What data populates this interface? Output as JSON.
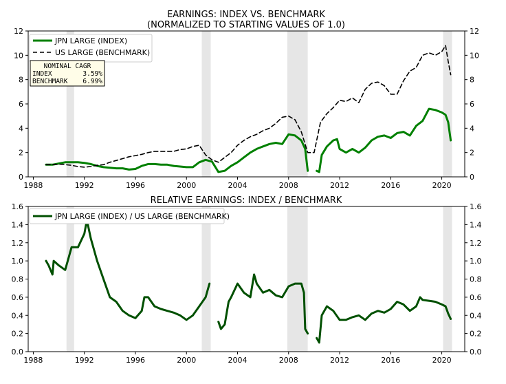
{
  "chart_data": [
    {
      "type": "line",
      "title": "EARNINGS: INDEX VS. BENCHMARK",
      "subtitle": "(NORMALIZED TO STARTING VALUES OF 1.0)",
      "xlim": [
        1987.6,
        2021.8
      ],
      "ylim": [
        0,
        12
      ],
      "xticks": [
        1988,
        1992,
        1996,
        2000,
        2004,
        2008,
        2012,
        2016,
        2020
      ],
      "yticks": [
        0,
        2,
        4,
        6,
        8,
        10,
        12
      ],
      "y_tick_decimals": 0,
      "recessions": [
        [
          1990.6,
          1991.2
        ],
        [
          2001.2,
          2001.9
        ],
        [
          2007.9,
          2009.5
        ],
        [
          2020.1,
          2020.8
        ]
      ],
      "legend": {
        "placement": "top-left"
      },
      "series": [
        {
          "name": "JPN LARGE (INDEX)",
          "color": "#008000",
          "dash": "",
          "width": 3,
          "points": [
            [
              1989.0,
              1.0
            ],
            [
              1989.5,
              1.0
            ],
            [
              1990.0,
              1.1
            ],
            [
              1990.5,
              1.2
            ],
            [
              1991.0,
              1.2
            ],
            [
              1991.5,
              1.2
            ],
            [
              1992.0,
              1.15
            ],
            [
              1992.5,
              1.05
            ],
            [
              1993.0,
              0.9
            ],
            [
              1993.5,
              0.8
            ],
            [
              1994.0,
              0.75
            ],
            [
              1994.5,
              0.7
            ],
            [
              1995.0,
              0.7
            ],
            [
              1995.5,
              0.6
            ],
            [
              1996.0,
              0.65
            ],
            [
              1996.5,
              0.9
            ],
            [
              1997.0,
              1.05
            ],
            [
              1997.5,
              1.05
            ],
            [
              1998.0,
              1.0
            ],
            [
              1998.5,
              1.0
            ],
            [
              1999.0,
              0.9
            ],
            [
              1999.5,
              0.85
            ],
            [
              2000.0,
              0.8
            ],
            [
              2000.5,
              0.8
            ],
            [
              2001.0,
              1.2
            ],
            [
              2001.5,
              1.4
            ],
            [
              2002.0,
              1.25
            ],
            [
              2002.5,
              0.4
            ],
            [
              2003.0,
              0.5
            ],
            [
              2003.5,
              0.9
            ],
            [
              2004.0,
              1.2
            ],
            [
              2004.5,
              1.6
            ],
            [
              2005.0,
              2.0
            ],
            [
              2005.5,
              2.3
            ],
            [
              2006.0,
              2.5
            ],
            [
              2006.5,
              2.7
            ],
            [
              2007.0,
              2.8
            ],
            [
              2007.5,
              2.7
            ],
            [
              2008.0,
              3.5
            ],
            [
              2008.5,
              3.4
            ],
            [
              2009.0,
              3.0
            ],
            [
              2009.3,
              2.3
            ],
            [
              2009.5,
              0.5
            ],
            null,
            [
              2010.2,
              0.5
            ],
            [
              2010.4,
              0.4
            ],
            [
              2010.6,
              1.8
            ],
            [
              2011.0,
              2.5
            ],
            [
              2011.5,
              3.0
            ],
            [
              2011.8,
              3.1
            ],
            [
              2012.0,
              2.3
            ],
            [
              2012.5,
              2.0
            ],
            [
              2013.0,
              2.3
            ],
            [
              2013.5,
              2.0
            ],
            [
              2014.0,
              2.4
            ],
            [
              2014.5,
              3.0
            ],
            [
              2015.0,
              3.3
            ],
            [
              2015.5,
              3.4
            ],
            [
              2016.0,
              3.2
            ],
            [
              2016.5,
              3.6
            ],
            [
              2017.0,
              3.7
            ],
            [
              2017.5,
              3.4
            ],
            [
              2018.0,
              4.2
            ],
            [
              2018.5,
              4.6
            ],
            [
              2019.0,
              5.6
            ],
            [
              2019.5,
              5.5
            ],
            [
              2020.0,
              5.3
            ],
            [
              2020.3,
              5.1
            ],
            [
              2020.5,
              4.5
            ],
            [
              2020.7,
              3.0
            ]
          ]
        },
        {
          "name": "US LARGE (BENCHMARK)",
          "color": "#000000",
          "dash": "6,4",
          "width": 1.6,
          "points": [
            [
              1989.0,
              1.0
            ],
            [
              1989.5,
              1.0
            ],
            [
              1990.0,
              1.05
            ],
            [
              1990.5,
              1.0
            ],
            [
              1991.0,
              0.95
            ],
            [
              1991.5,
              0.85
            ],
            [
              1992.0,
              0.8
            ],
            [
              1992.5,
              0.85
            ],
            [
              1993.0,
              0.95
            ],
            [
              1993.5,
              1.0
            ],
            [
              1994.0,
              1.2
            ],
            [
              1994.5,
              1.35
            ],
            [
              1995.0,
              1.5
            ],
            [
              1995.5,
              1.65
            ],
            [
              1996.0,
              1.75
            ],
            [
              1996.5,
              1.85
            ],
            [
              1997.0,
              2.0
            ],
            [
              1997.5,
              2.1
            ],
            [
              1998.0,
              2.1
            ],
            [
              1998.5,
              2.1
            ],
            [
              1999.0,
              2.1
            ],
            [
              1999.5,
              2.25
            ],
            [
              2000.0,
              2.3
            ],
            [
              2000.5,
              2.5
            ],
            [
              2001.0,
              2.6
            ],
            [
              2001.5,
              1.8
            ],
            [
              2002.0,
              1.4
            ],
            [
              2002.5,
              1.2
            ],
            [
              2003.0,
              1.6
            ],
            [
              2003.5,
              2.0
            ],
            [
              2004.0,
              2.6
            ],
            [
              2004.5,
              3.0
            ],
            [
              2005.0,
              3.3
            ],
            [
              2005.5,
              3.5
            ],
            [
              2006.0,
              3.8
            ],
            [
              2006.5,
              4.0
            ],
            [
              2007.0,
              4.4
            ],
            [
              2007.5,
              4.9
            ],
            [
              2008.0,
              5.0
            ],
            [
              2008.5,
              4.7
            ],
            [
              2009.0,
              3.7
            ],
            [
              2009.5,
              2.0
            ],
            [
              2010.0,
              2.0
            ],
            [
              2010.5,
              4.5
            ],
            [
              2011.0,
              5.2
            ],
            [
              2011.5,
              5.7
            ],
            [
              2012.0,
              6.3
            ],
            [
              2012.5,
              6.2
            ],
            [
              2013.0,
              6.5
            ],
            [
              2013.5,
              6.1
            ],
            [
              2014.0,
              7.2
            ],
            [
              2014.5,
              7.7
            ],
            [
              2015.0,
              7.8
            ],
            [
              2015.5,
              7.5
            ],
            [
              2016.0,
              6.8
            ],
            [
              2016.5,
              6.8
            ],
            [
              2017.0,
              7.9
            ],
            [
              2017.5,
              8.7
            ],
            [
              2018.0,
              9.0
            ],
            [
              2018.5,
              10.0
            ],
            [
              2019.0,
              10.2
            ],
            [
              2019.5,
              10.0
            ],
            [
              2020.0,
              10.3
            ],
            [
              2020.3,
              10.8
            ],
            [
              2020.5,
              9.5
            ],
            [
              2020.7,
              8.4
            ]
          ]
        }
      ],
      "cagr_box": {
        "header": "NOMINAL CAGR",
        "rows": [
          {
            "label": "INDEX",
            "value": "3.59%"
          },
          {
            "label": "BENCHMARK",
            "value": "6.99%"
          }
        ]
      }
    },
    {
      "type": "line",
      "title": "RELATIVE EARNINGS: INDEX / BENCHMARK",
      "xlim": [
        1987.6,
        2021.8
      ],
      "ylim": [
        0,
        1.6
      ],
      "xticks": [
        1988,
        1992,
        1996,
        2000,
        2004,
        2008,
        2012,
        2016,
        2020
      ],
      "yticks": [
        0.0,
        0.2,
        0.4,
        0.6,
        0.8,
        1.0,
        1.2,
        1.4,
        1.6
      ],
      "y_tick_decimals": 1,
      "recessions": [
        [
          1990.6,
          1991.2
        ],
        [
          2001.2,
          2001.9
        ],
        [
          2007.9,
          2009.5
        ],
        [
          2020.1,
          2020.8
        ]
      ],
      "legend": {
        "placement": "top-left"
      },
      "series": [
        {
          "name": "JPN LARGE (INDEX) / US LARGE (BENCHMARK)",
          "color": "#005000",
          "dash": "",
          "width": 3,
          "points": [
            [
              1989.0,
              1.0
            ],
            [
              1989.2,
              0.95
            ],
            [
              1989.5,
              0.85
            ],
            [
              1989.6,
              1.0
            ],
            [
              1990.0,
              0.95
            ],
            [
              1990.5,
              0.9
            ],
            [
              1990.8,
              1.05
            ],
            [
              1991.0,
              1.15
            ],
            [
              1991.5,
              1.15
            ],
            [
              1992.0,
              1.3
            ],
            [
              1992.2,
              1.45
            ],
            [
              1992.5,
              1.25
            ],
            [
              1993.0,
              1.0
            ],
            [
              1993.5,
              0.8
            ],
            [
              1994.0,
              0.6
            ],
            [
              1994.5,
              0.55
            ],
            [
              1995.0,
              0.45
            ],
            [
              1995.5,
              0.4
            ],
            [
              1996.0,
              0.37
            ],
            [
              1996.5,
              0.45
            ],
            [
              1996.7,
              0.6
            ],
            [
              1997.0,
              0.6
            ],
            [
              1997.5,
              0.5
            ],
            [
              1998.0,
              0.47
            ],
            [
              1998.5,
              0.45
            ],
            [
              1999.0,
              0.43
            ],
            [
              1999.5,
              0.4
            ],
            [
              2000.0,
              0.35
            ],
            [
              2000.5,
              0.4
            ],
            [
              2001.0,
              0.5
            ],
            [
              2001.5,
              0.6
            ],
            [
              2001.8,
              0.75
            ],
            null,
            [
              2002.5,
              0.33
            ],
            [
              2002.7,
              0.25
            ],
            [
              2003.0,
              0.3
            ],
            [
              2003.3,
              0.55
            ],
            [
              2003.5,
              0.6
            ],
            [
              2004.0,
              0.75
            ],
            [
              2004.5,
              0.65
            ],
            [
              2005.0,
              0.6
            ],
            [
              2005.3,
              0.85
            ],
            [
              2005.5,
              0.75
            ],
            [
              2006.0,
              0.65
            ],
            [
              2006.5,
              0.68
            ],
            [
              2007.0,
              0.62
            ],
            [
              2007.5,
              0.6
            ],
            [
              2008.0,
              0.72
            ],
            [
              2008.5,
              0.75
            ],
            [
              2009.0,
              0.75
            ],
            [
              2009.2,
              0.65
            ],
            [
              2009.3,
              0.25
            ],
            [
              2009.5,
              0.2
            ],
            null,
            [
              2010.2,
              0.15
            ],
            [
              2010.4,
              0.1
            ],
            [
              2010.6,
              0.4
            ],
            [
              2011.0,
              0.5
            ],
            [
              2011.5,
              0.45
            ],
            [
              2012.0,
              0.35
            ],
            [
              2012.5,
              0.35
            ],
            [
              2013.0,
              0.38
            ],
            [
              2013.5,
              0.4
            ],
            [
              2014.0,
              0.35
            ],
            [
              2014.5,
              0.42
            ],
            [
              2015.0,
              0.45
            ],
            [
              2015.5,
              0.43
            ],
            [
              2016.0,
              0.47
            ],
            [
              2016.5,
              0.55
            ],
            [
              2017.0,
              0.52
            ],
            [
              2017.5,
              0.45
            ],
            [
              2018.0,
              0.5
            ],
            [
              2018.3,
              0.6
            ],
            [
              2018.5,
              0.57
            ],
            [
              2019.0,
              0.56
            ],
            [
              2019.5,
              0.55
            ],
            [
              2020.0,
              0.52
            ],
            [
              2020.3,
              0.5
            ],
            [
              2020.5,
              0.42
            ],
            [
              2020.7,
              0.36
            ]
          ]
        }
      ]
    }
  ]
}
